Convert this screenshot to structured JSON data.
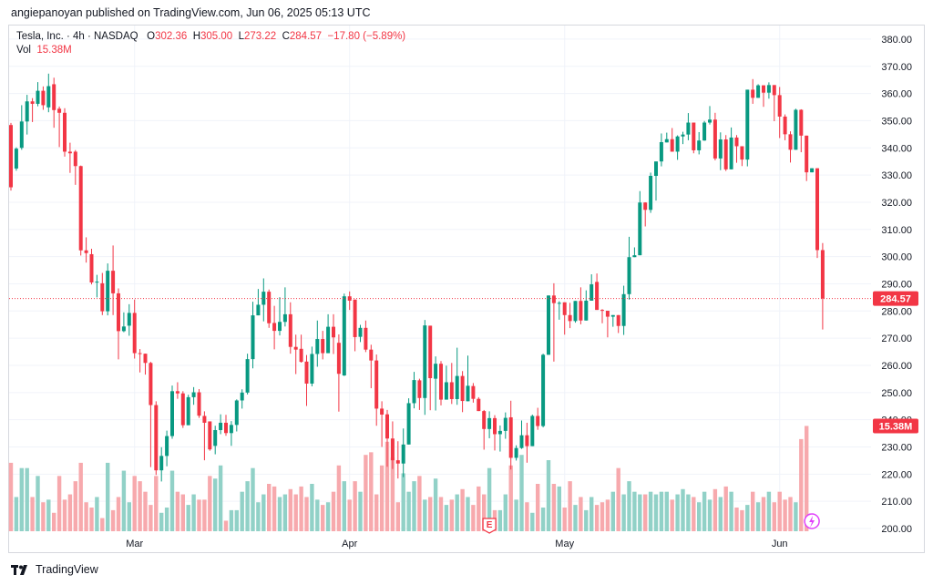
{
  "header": {
    "published_by": "angiepanoyan published on TradingView.com, Jun 06, 2025 05:13 UTC"
  },
  "legend": {
    "symbol": "Tesla, Inc. · 4h · NASDAQ",
    "o_label": "O",
    "o": "302.36",
    "h_label": "H",
    "h": "305.00",
    "l_label": "L",
    "l": "273.22",
    "c_label": "C",
    "c": "284.57",
    "change": "−17.80 (−5.89%)",
    "vol_label": "Vol",
    "vol": "15.38M"
  },
  "footer": {
    "brand": "TradingView"
  },
  "colors": {
    "up": "#089981",
    "down": "#f23645",
    "up_vol": "#91d1c7",
    "down_vol": "#f7a9ad"
  },
  "chart_data": {
    "type": "candlestick",
    "x_axis": {
      "labels": [
        "Mar",
        "Apr",
        "May",
        "Jun"
      ],
      "label_index": [
        23,
        63,
        103,
        143
      ]
    },
    "y_axis": {
      "ticks": [
        200,
        210,
        220,
        230,
        240,
        250,
        260,
        270,
        280,
        290,
        300,
        310,
        320,
        330,
        340,
        350,
        360,
        370,
        380
      ],
      "range": [
        199,
        385
      ]
    },
    "last_price_label": "284.57",
    "last_volume_label": "15.38M",
    "volume_range": [
      0,
      45
    ],
    "annotations": {
      "earnings_icon": "E",
      "earnings_index": 89,
      "dividend_icon": "lightning-icon",
      "dividend_index": 149
    },
    "candles": [
      [
        348.4,
        325.5,
        349.2,
        324.3
      ],
      [
        332.4,
        339.7,
        340.2,
        331.6
      ],
      [
        340,
        349.7,
        355.7,
        339.3
      ],
      [
        349.7,
        357.1,
        359.5,
        344.9
      ],
      [
        357.1,
        356.2,
        358.3,
        349.5
      ],
      [
        356.2,
        361,
        364.2,
        355.3
      ],
      [
        361,
        355.7,
        362.6,
        354
      ],
      [
        354.9,
        362.7,
        367.3,
        353.1
      ],
      [
        363.4,
        353.9,
        365.8,
        347.4
      ],
      [
        354.4,
        352.9,
        355.2,
        340.3
      ],
      [
        352.9,
        338.6,
        354.6,
        336.8
      ],
      [
        338.6,
        338,
        341.9,
        330.8
      ],
      [
        338.6,
        333.3,
        339.2,
        326.4
      ],
      [
        333.3,
        302.3,
        333.5,
        300.4
      ],
      [
        302.3,
        301.3,
        307.1,
        297.8
      ],
      [
        300.9,
        290.5,
        302.9,
        289.8
      ],
      [
        290.5,
        290.8,
        293.3,
        285
      ],
      [
        290.2,
        279.9,
        294,
        278.5
      ],
      [
        279.9,
        294.8,
        297.5,
        278.4
      ],
      [
        294.8,
        286.5,
        304.1,
        278.5
      ],
      [
        286.5,
        272.6,
        288.3,
        262.2
      ],
      [
        272.6,
        274.3,
        279.5,
        272.2
      ],
      [
        274.6,
        279.3,
        282.5,
        270.9
      ],
      [
        279.3,
        264.5,
        284.2,
        262.5
      ],
      [
        264.5,
        264.2,
        266,
        257.4
      ],
      [
        264.3,
        260.9,
        263.5,
        256.6
      ],
      [
        260.9,
        245.4,
        261.3,
        222.6
      ],
      [
        245.4,
        221.4,
        246.8,
        219.7
      ],
      [
        221.4,
        226.7,
        229.9,
        217.3
      ],
      [
        226.7,
        234,
        236,
        222.9
      ],
      [
        234,
        250.5,
        252.6,
        233
      ],
      [
        250.5,
        249.7,
        253.8,
        247.7
      ],
      [
        249.7,
        238,
        250.5,
        237
      ],
      [
        238,
        248.3,
        249.2,
        238
      ],
      [
        248.3,
        250.1,
        252,
        245.5
      ],
      [
        250.1,
        241.5,
        251.3,
        240.7
      ],
      [
        241.4,
        238.9,
        243.1,
        225.1
      ],
      [
        239.4,
        229.1,
        231.2,
        228.6
      ],
      [
        230.4,
        236.2,
        237.8,
        227.3
      ],
      [
        236.2,
        238.9,
        242,
        234.7
      ],
      [
        238.9,
        235.1,
        241.8,
        234.1
      ],
      [
        235.1,
        238.1,
        239.5,
        230.4
      ],
      [
        238.1,
        247.1,
        247.5,
        235.7
      ],
      [
        247.1,
        250,
        251.2,
        244.1
      ],
      [
        250,
        262.3,
        264.3,
        249.3
      ],
      [
        262.3,
        278.4,
        283.4,
        258.9
      ],
      [
        278.4,
        282.3,
        288.1,
        279.5
      ],
      [
        282.3,
        287.1,
        292,
        276.2
      ],
      [
        287.1,
        275.5,
        287.9,
        273.8
      ],
      [
        275.6,
        272.7,
        281.9,
        265.9
      ],
      [
        272.7,
        276,
        285.1,
        271
      ],
      [
        276,
        278.8,
        288.7,
        274.3
      ],
      [
        278.8,
        266.8,
        283.2,
        264.3
      ],
      [
        266.8,
        265.8,
        271.3,
        256.8
      ],
      [
        266.1,
        261.3,
        271.3,
        261
      ],
      [
        261.4,
        253.3,
        263.8,
        245.1
      ],
      [
        253.3,
        264.2,
        266.9,
        252.3
      ],
      [
        264.2,
        269.7,
        276.5,
        259.5
      ],
      [
        269.7,
        264.5,
        272.7,
        262.2
      ],
      [
        264.5,
        274.2,
        278.8,
        266.1
      ],
      [
        274.2,
        270.3,
        278.8,
        264.2
      ],
      [
        268.3,
        256.9,
        271.4,
        243
      ],
      [
        256.3,
        285.4,
        286.4,
        256.1
      ],
      [
        285.4,
        283.8,
        287.2,
        280.4
      ],
      [
        284.2,
        270.4,
        271.5,
        265.2
      ],
      [
        270.5,
        273.8,
        274.9,
        268.6
      ],
      [
        273.8,
        265.8,
        276.5,
        264.9
      ],
      [
        265.8,
        261.8,
        267.6,
        251.6
      ],
      [
        261.8,
        244.1,
        264,
        237.8
      ],
      [
        244.1,
        241.9,
        246.8,
        230
      ],
      [
        242,
        233.1,
        243.6,
        222.7
      ],
      [
        233.1,
        225.1,
        239.4,
        221.9
      ],
      [
        225.1,
        223.9,
        232.1,
        218.4
      ],
      [
        223.9,
        230.9,
        236.8,
        218.9
      ],
      [
        230.9,
        246.1,
        247.9,
        240
      ],
      [
        246.1,
        254.6,
        257.6,
        244.2
      ],
      [
        254.5,
        248,
        255.1,
        243.6
      ],
      [
        248,
        274.7,
        276.7,
        241.8
      ],
      [
        274.6,
        255.3,
        258.2,
        243.5
      ],
      [
        255.1,
        260.6,
        263.3,
        243.4
      ],
      [
        260.6,
        247.4,
        261.6,
        245.3
      ],
      [
        247.4,
        253.8,
        259.9,
        250.7
      ],
      [
        253.8,
        247.6,
        260.9,
        245.8
      ],
      [
        247.6,
        256.1,
        266.5,
        245.5
      ],
      [
        256.1,
        246.9,
        257.9,
        242.8
      ],
      [
        246.8,
        252.5,
        263.6,
        248
      ],
      [
        252.4,
        247.7,
        253.5,
        246.3
      ],
      [
        247.7,
        243.2,
        248.3,
        243.6
      ],
      [
        243.2,
        236.6,
        243.6,
        229
      ],
      [
        236.6,
        240.6,
        243.1,
        233.2
      ],
      [
        240.6,
        234.7,
        241.7,
        228.7
      ],
      [
        234.7,
        235.9,
        237.9,
        228.3
      ],
      [
        235.9,
        240.7,
        242.7,
        233
      ],
      [
        240.9,
        226,
        247,
        221.7
      ],
      [
        226,
        229.6,
        230.6,
        225
      ],
      [
        229.6,
        234.3,
        239.7,
        229.3
      ],
      [
        234.3,
        230.3,
        238.9,
        224.2
      ],
      [
        230.3,
        241.4,
        241.9,
        230.4
      ],
      [
        241.4,
        237.7,
        244.4,
        236.3
      ],
      [
        237.7,
        263.9,
        264.3,
        237.2
      ],
      [
        263.9,
        285.7,
        285.7,
        264.2
      ],
      [
        285.7,
        282.9,
        290.2,
        261.4
      ],
      [
        282.9,
        283,
        283.6,
        276.8
      ],
      [
        283.2,
        278.5,
        283.1,
        271.3
      ],
      [
        278.5,
        276.3,
        283,
        273.7
      ],
      [
        276.3,
        283.7,
        283.6,
        275.7
      ],
      [
        283.7,
        276.5,
        288.7,
        275.1
      ],
      [
        276.5,
        283.8,
        287.6,
        282.3
      ],
      [
        283.8,
        289.8,
        293.5,
        285.5
      ],
      [
        290.7,
        280.4,
        293.8,
        281.2
      ],
      [
        280.4,
        280.1,
        280.7,
        275.5
      ],
      [
        280.1,
        277.9,
        278.2,
        270.3
      ],
      [
        277.9,
        278.5,
        278.3,
        274.2
      ],
      [
        278.5,
        274.5,
        278.4,
        271.9
      ],
      [
        274.5,
        286.2,
        289.3,
        271.2
      ],
      [
        286.2,
        299.8,
        307.3,
        284.2
      ],
      [
        299.8,
        300.5,
        303.4,
        299.8
      ],
      [
        300.5,
        319.9,
        324.1,
        301.3
      ],
      [
        319.9,
        317.2,
        320,
        311.1
      ],
      [
        317.2,
        329.7,
        330.9,
        316.1
      ],
      [
        329.7,
        335,
        334.1,
        320.6
      ],
      [
        335,
        342.1,
        345.3,
        333.2
      ],
      [
        342,
        343.2,
        345.6,
        343.8
      ],
      [
        343.2,
        338.6,
        347.3,
        338.7
      ],
      [
        338.6,
        344.2,
        344.6,
        335.6
      ],
      [
        344.2,
        344.9,
        345.9,
        341.4
      ],
      [
        344.9,
        349.3,
        352.8,
        342.8
      ],
      [
        349.3,
        339.1,
        349.3,
        338
      ],
      [
        339.1,
        342.7,
        345.8,
        337.6
      ],
      [
        342.7,
        349.3,
        349.9,
        342.6
      ],
      [
        349.3,
        350.4,
        355.4,
        348.6
      ],
      [
        350.4,
        336.1,
        352.9,
        335.4
      ],
      [
        336.1,
        343.1,
        345.7,
        331.8
      ],
      [
        343.1,
        332.1,
        344.7,
        331.5
      ],
      [
        332.1,
        343.8,
        347.5,
        342.6
      ],
      [
        343.8,
        340.6,
        344.7,
        334.5
      ],
      [
        340.6,
        335.7,
        339.1,
        333.3
      ],
      [
        335.7,
        361.4,
        360.8,
        333.2
      ],
      [
        361.4,
        358.4,
        365.3,
        356.2
      ],
      [
        358.4,
        363,
        363.4,
        359
      ],
      [
        363,
        360.3,
        360.6,
        355.1
      ],
      [
        360.3,
        363.1,
        364.1,
        358.1
      ],
      [
        363.1,
        359.4,
        361.5,
        349.8
      ],
      [
        359.4,
        351.5,
        362.4,
        343.6
      ],
      [
        351.5,
        345,
        352.3,
        342.8
      ],
      [
        345,
        339.3,
        346.1,
        334.6
      ],
      [
        339.3,
        354,
        354.4,
        339.9
      ],
      [
        354,
        344.5,
        354.2,
        338.4
      ],
      [
        344.5,
        331,
        342.6,
        327.8
      ],
      [
        331,
        332.5,
        332.3,
        331.1
      ],
      [
        332.5,
        302.4,
        324.4,
        299.5
      ],
      [
        302.4,
        284.6,
        305,
        273.2
      ]
    ],
    "volume": [
      26,
      13,
      24,
      24,
      13,
      21,
      11,
      12,
      7,
      21,
      12,
      14,
      19,
      26,
      11,
      9,
      13,
      5,
      26,
      8,
      13,
      23,
      11,
      21,
      19,
      15,
      10,
      21,
      7,
      9,
      23,
      15,
      14,
      10,
      14,
      12,
      12,
      21,
      20,
      25,
      4,
      8,
      8,
      15,
      19,
      24,
      11,
      14,
      18,
      17,
      13,
      14,
      16,
      14,
      17,
      13,
      18,
      12,
      10,
      11,
      15,
      25,
      19,
      12,
      19,
      15,
      29,
      30,
      14,
      25,
      34,
      28,
      11,
      22,
      15,
      19,
      21,
      12,
      13,
      20,
      13,
      10,
      12,
      14,
      16,
      13,
      10,
      17,
      14,
      24,
      8,
      8,
      14,
      25,
      12,
      29,
      11,
      7,
      18,
      9,
      27,
      18,
      17,
      9,
      19,
      10,
      13,
      8,
      13,
      10,
      11,
      12,
      15,
      24,
      14,
      19,
      15,
      14,
      14,
      15,
      14,
      15,
      15,
      12,
      14,
      16,
      14,
      13,
      11,
      15,
      12,
      16,
      13,
      17,
      15,
      9,
      8,
      10,
      15,
      11,
      13,
      15,
      11,
      15,
      12,
      13,
      11,
      35,
      40
    ]
  }
}
